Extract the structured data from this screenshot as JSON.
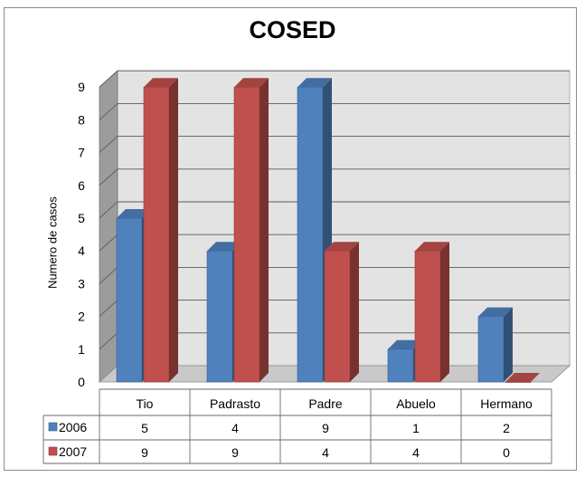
{
  "chart_data": {
    "type": "bar",
    "title": "COSED",
    "ylabel": "Numero de casos",
    "xlabel": "",
    "categories": [
      "Tio",
      "Padrasto",
      "Padre",
      "Abuelo",
      "Hermano"
    ],
    "series": [
      {
        "name": "2006",
        "values": [
          5,
          4,
          9,
          1,
          2
        ],
        "color": "#4f81bd"
      },
      {
        "name": "2007",
        "values": [
          9,
          9,
          4,
          4,
          0
        ],
        "color": "#c0504d"
      }
    ],
    "ylim": [
      0,
      9
    ],
    "yticks": [
      "0",
      "1",
      "2",
      "3",
      "4",
      "5",
      "6",
      "7",
      "8",
      "9"
    ],
    "grid": true,
    "legend": "data-table",
    "style": "3d-clustered-column"
  }
}
